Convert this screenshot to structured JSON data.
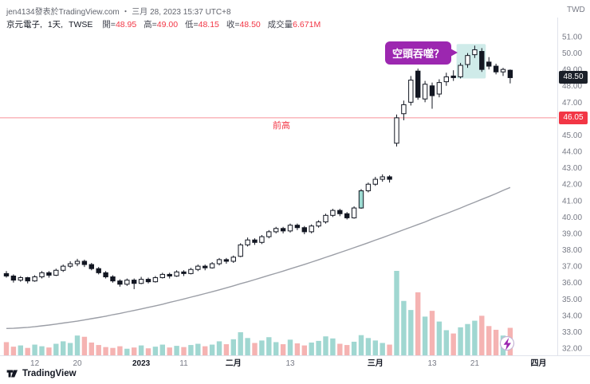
{
  "header": {
    "line": "jen4134發表於TradingView.com ・ 三月 28, 2023 15:37 UTC+8",
    "currency": "TWD"
  },
  "symbol_line": {
    "name": "京元電子,",
    "interval": "1天,",
    "exchange": "TWSE",
    "open_label": "開=",
    "open": "48.95",
    "high_label": "高=",
    "high": "49.00",
    "low_label": "低=",
    "low": "48.15",
    "close_label": "收=",
    "close": "48.50",
    "volume_label": "成交量",
    "volume": "6.671M"
  },
  "annotations": {
    "callout": "空頭吞噬？",
    "price_line_label": "前高",
    "price_line_value": "46.05",
    "last_price": "48.50"
  },
  "watermark": {
    "brand": "TradingView"
  },
  "colors": {
    "candle_up": "#ffffff",
    "candle_down": "#131722",
    "candle_border": "#131722",
    "volume_up": "#8fd0c9",
    "volume_down": "#f3a6a5",
    "ma_line": "#9b9ea6",
    "highlight": "#26a69a",
    "highlight_candle": "#9ddbd2",
    "callout_bg": "#9c27b0",
    "price_line": "#f23645",
    "last_price_bg": "#1b2029",
    "axis_text": "#787b86",
    "major_text": "#131722",
    "axis_line": "#e0e3eb"
  },
  "chart_data": {
    "type": "candlestick",
    "title": "京元電子, 1天, TWSE",
    "ylabel": "TWD",
    "last_price": 48.5,
    "last_bar": {
      "open": 48.95,
      "high": 49.0,
      "low": 48.15,
      "close": 48.5,
      "volume_label": "6.671M"
    },
    "price_line": {
      "value": 46.05,
      "label": "前高"
    },
    "highlight_box": {
      "from_index": 64,
      "to_index": 67,
      "price_top": 50.55,
      "price_bottom": 48.45
    },
    "highlight_candle_index": 50,
    "callout": {
      "text": "空頭吞噬？",
      "anchor_index": 66
    },
    "y_axis": {
      "min": 32,
      "max": 51,
      "step": 1
    },
    "x_ticks": [
      {
        "index": 4,
        "label": "12",
        "major": false
      },
      {
        "index": 10,
        "label": "20",
        "major": false
      },
      {
        "index": 19,
        "label": "2023",
        "major": true
      },
      {
        "index": 25,
        "label": "11",
        "major": false
      },
      {
        "index": 32,
        "label": "二月",
        "major": true
      },
      {
        "index": 40,
        "label": "13",
        "major": false
      },
      {
        "index": 52,
        "label": "三月",
        "major": true
      },
      {
        "index": 60,
        "label": "13",
        "major": false
      },
      {
        "index": 66,
        "label": "21",
        "major": false
      },
      {
        "index": 75,
        "label": "四月",
        "major": true
      }
    ],
    "dates": [
      "2022-12-06",
      "2022-12-07",
      "2022-12-08",
      "2022-12-09",
      "2022-12-12",
      "2022-12-13",
      "2022-12-14",
      "2022-12-15",
      "2022-12-16",
      "2022-12-19",
      "2022-12-20",
      "2022-12-21",
      "2022-12-22",
      "2022-12-23",
      "2022-12-26",
      "2022-12-27",
      "2022-12-28",
      "2022-12-29",
      "2022-12-30",
      "2023-01-03",
      "2023-01-04",
      "2023-01-05",
      "2023-01-06",
      "2023-01-09",
      "2023-01-10",
      "2023-01-11",
      "2023-01-12",
      "2023-01-13",
      "2023-01-16",
      "2023-01-17",
      "2023-01-30",
      "2023-01-31",
      "2023-02-01",
      "2023-02-02",
      "2023-02-03",
      "2023-02-06",
      "2023-02-07",
      "2023-02-08",
      "2023-02-09",
      "2023-02-10",
      "2023-02-13",
      "2023-02-14",
      "2023-02-15",
      "2023-02-16",
      "2023-02-17",
      "2023-02-20",
      "2023-02-21",
      "2023-02-22",
      "2023-02-23",
      "2023-02-24",
      "2023-02-27",
      "2023-02-28",
      "2023-03-01",
      "2023-03-02",
      "2023-03-03",
      "2023-03-06",
      "2023-03-07",
      "2023-03-08",
      "2023-03-09",
      "2023-03-10",
      "2023-03-13",
      "2023-03-14",
      "2023-03-15",
      "2023-03-16",
      "2023-03-17",
      "2023-03-20",
      "2023-03-21",
      "2023-03-22",
      "2023-03-23",
      "2023-03-24",
      "2023-03-27",
      "2023-03-28"
    ],
    "candles": [
      [
        36.55,
        36.7,
        36.3,
        36.4
      ],
      [
        36.4,
        36.5,
        36.0,
        36.15
      ],
      [
        36.15,
        36.4,
        36.05,
        36.3
      ],
      [
        36.3,
        36.35,
        35.95,
        36.1
      ],
      [
        36.1,
        36.45,
        36.05,
        36.35
      ],
      [
        36.35,
        36.7,
        36.25,
        36.6
      ],
      [
        36.6,
        36.7,
        36.3,
        36.45
      ],
      [
        36.45,
        36.85,
        36.4,
        36.75
      ],
      [
        36.75,
        37.1,
        36.65,
        37.0
      ],
      [
        37.0,
        37.3,
        36.9,
        37.15
      ],
      [
        37.15,
        37.45,
        37.0,
        37.3
      ],
      [
        37.3,
        37.4,
        36.95,
        37.1
      ],
      [
        37.1,
        37.2,
        36.75,
        36.85
      ],
      [
        36.85,
        36.95,
        36.5,
        36.6
      ],
      [
        36.6,
        36.7,
        36.25,
        36.35
      ],
      [
        36.35,
        36.45,
        36.0,
        36.1
      ],
      [
        36.1,
        36.2,
        35.75,
        35.9
      ],
      [
        35.9,
        36.25,
        35.8,
        36.15
      ],
      [
        36.15,
        36.25,
        35.6,
        35.95
      ],
      [
        35.95,
        36.35,
        35.9,
        36.2
      ],
      [
        36.2,
        36.3,
        35.95,
        36.05
      ],
      [
        36.05,
        36.4,
        36.0,
        36.3
      ],
      [
        36.3,
        36.6,
        36.25,
        36.5
      ],
      [
        36.5,
        36.6,
        36.25,
        36.4
      ],
      [
        36.4,
        36.75,
        36.35,
        36.65
      ],
      [
        36.65,
        36.75,
        36.4,
        36.55
      ],
      [
        36.55,
        36.9,
        36.5,
        36.8
      ],
      [
        36.8,
        37.1,
        36.7,
        37.0
      ],
      [
        37.0,
        37.1,
        36.75,
        36.9
      ],
      [
        36.9,
        37.25,
        36.85,
        37.15
      ],
      [
        37.15,
        37.5,
        37.05,
        37.4
      ],
      [
        37.4,
        37.5,
        37.15,
        37.3
      ],
      [
        37.3,
        37.65,
        37.2,
        37.55
      ],
      [
        37.6,
        38.4,
        37.55,
        38.3
      ],
      [
        38.3,
        38.75,
        38.2,
        38.6
      ],
      [
        38.6,
        38.7,
        38.3,
        38.45
      ],
      [
        38.45,
        38.9,
        38.35,
        38.8
      ],
      [
        38.8,
        39.2,
        38.7,
        39.1
      ],
      [
        39.1,
        39.4,
        39.0,
        39.3
      ],
      [
        39.3,
        39.4,
        39.0,
        39.15
      ],
      [
        39.15,
        39.6,
        39.05,
        39.5
      ],
      [
        39.5,
        39.6,
        39.2,
        39.35
      ],
      [
        39.35,
        39.45,
        38.95,
        39.1
      ],
      [
        39.1,
        39.55,
        39.0,
        39.45
      ],
      [
        39.45,
        39.8,
        39.35,
        39.7
      ],
      [
        39.7,
        40.2,
        39.6,
        40.1
      ],
      [
        40.1,
        40.5,
        40.0,
        40.4
      ],
      [
        40.4,
        40.5,
        40.05,
        40.2
      ],
      [
        40.2,
        40.3,
        39.85,
        39.95
      ],
      [
        39.95,
        40.65,
        39.9,
        40.55
      ],
      [
        40.55,
        41.7,
        40.5,
        41.6
      ],
      [
        41.6,
        42.1,
        41.5,
        42.0
      ],
      [
        42.0,
        42.45,
        41.9,
        42.3
      ],
      [
        42.3,
        42.6,
        42.15,
        42.45
      ],
      [
        42.45,
        42.55,
        42.1,
        42.3
      ],
      [
        44.5,
        46.25,
        44.3,
        46.05
      ],
      [
        46.3,
        47.1,
        45.9,
        46.85
      ],
      [
        47.0,
        48.6,
        46.8,
        48.35
      ],
      [
        48.9,
        49.05,
        47.15,
        47.3
      ],
      [
        47.2,
        48.3,
        47.0,
        48.1
      ],
      [
        48.0,
        48.2,
        46.6,
        47.4
      ],
      [
        47.5,
        48.4,
        47.3,
        48.2
      ],
      [
        48.25,
        48.8,
        48.0,
        48.55
      ],
      [
        48.6,
        48.95,
        48.3,
        48.5
      ],
      [
        48.55,
        49.4,
        48.45,
        49.25
      ],
      [
        49.3,
        50.0,
        49.1,
        49.85
      ],
      [
        49.9,
        50.45,
        49.7,
        50.2
      ],
      [
        50.1,
        50.3,
        48.85,
        49.0
      ],
      [
        49.45,
        49.75,
        49.0,
        49.2
      ],
      [
        49.2,
        49.35,
        48.7,
        48.85
      ],
      [
        48.85,
        49.1,
        48.6,
        49.0
      ],
      [
        48.95,
        49.0,
        48.15,
        48.5
      ]
    ],
    "volumes": [
      3.2,
      2.1,
      2.4,
      1.8,
      2.6,
      2.2,
      1.9,
      2.8,
      3.4,
      3.0,
      4.8,
      4.5,
      3.1,
      2.5,
      2.0,
      1.8,
      2.2,
      1.6,
      1.9,
      2.4,
      1.7,
      2.1,
      2.6,
      1.9,
      2.3,
      2.0,
      2.5,
      2.8,
      2.2,
      2.6,
      3.4,
      2.7,
      3.9,
      5.6,
      4.2,
      3.0,
      3.6,
      4.4,
      3.2,
      2.7,
      3.8,
      2.9,
      2.4,
      3.1,
      3.5,
      4.6,
      4.1,
      2.8,
      2.5,
      3.3,
      4.9,
      4.2,
      3.6,
      3.0,
      2.6,
      20.5,
      13.2,
      11.0,
      15.3,
      9.4,
      10.8,
      8.2,
      6.1,
      5.3,
      6.8,
      7.6,
      8.4,
      9.6,
      7.1,
      6.2,
      4.8,
      6.671
    ],
    "ma": [
      33.2,
      33.21,
      33.24,
      33.27,
      33.31,
      33.36,
      33.41,
      33.47,
      33.53,
      33.59,
      33.65,
      33.72,
      33.8,
      33.87,
      33.95,
      34.04,
      34.12,
      34.21,
      34.3,
      34.39,
      34.49,
      34.58,
      34.68,
      34.79,
      34.89,
      35.0,
      35.11,
      35.22,
      35.33,
      35.44,
      35.56,
      35.68,
      35.8,
      35.93,
      36.05,
      36.18,
      36.31,
      36.44,
      36.57,
      36.7,
      36.84,
      36.97,
      37.11,
      37.25,
      37.39,
      37.54,
      37.68,
      37.83,
      37.98,
      38.13,
      38.28,
      38.43,
      38.59,
      38.74,
      38.9,
      39.06,
      39.22,
      39.38,
      39.54,
      39.7,
      39.88,
      40.05,
      40.21,
      40.38,
      40.55,
      40.73,
      40.9,
      41.08,
      41.25,
      41.43,
      41.62,
      41.8
    ]
  }
}
